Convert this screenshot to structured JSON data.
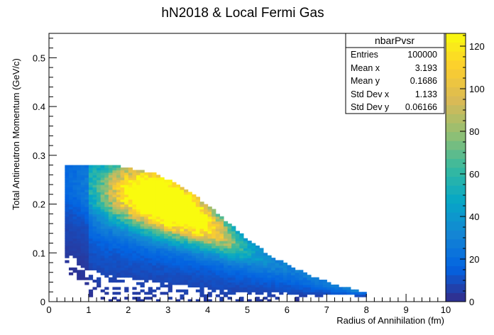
{
  "chart_data": {
    "type": "heatmap",
    "title": "hN2018 & Local Fermi Gas",
    "xlabel": "Radius of Annihilation (fm)",
    "ylabel": "Total Antineutron Momentum (GeV/c)",
    "xlim": [
      0,
      10
    ],
    "ylim": [
      0,
      0.55
    ],
    "xticks": [
      "0",
      "1",
      "2",
      "3",
      "4",
      "5",
      "6",
      "7",
      "8",
      "9",
      "10"
    ],
    "yticks": [
      "0",
      "0.1",
      "0.2",
      "0.3",
      "0.4",
      "0.5"
    ],
    "zlim": [
      0,
      126
    ],
    "zticks": [
      "0",
      "20",
      "40",
      "60",
      "80",
      "100",
      "120"
    ],
    "colormap": [
      "#352a87",
      "#0363e1",
      "#1485d4",
      "#06a7c6",
      "#38b99e",
      "#92bf73",
      "#d9ba56",
      "#fcce2e",
      "#f9fb0e"
    ],
    "distribution": {
      "description_points_upper_edge": [
        [
          0.4,
          0.275
        ],
        [
          1.0,
          0.278
        ],
        [
          1.8,
          0.275
        ],
        [
          2.6,
          0.262
        ],
        [
          3.4,
          0.232
        ],
        [
          4.2,
          0.183
        ],
        [
          4.9,
          0.132
        ],
        [
          5.6,
          0.09
        ],
        [
          6.4,
          0.058
        ],
        [
          7.2,
          0.032
        ],
        [
          7.9,
          0.018
        ]
      ],
      "peak": [
        3.1,
        0.215
      ]
    },
    "stats": {
      "name": "nbarPvsr",
      "rows": [
        {
          "label": "Entries",
          "value": "100000"
        },
        {
          "label": "Mean x",
          "value": "3.193"
        },
        {
          "label": "Mean y",
          "value": "0.1686"
        },
        {
          "label": "Std Dev x",
          "value": "1.133"
        },
        {
          "label": "Std Dev y",
          "value": "0.06166"
        }
      ]
    }
  }
}
